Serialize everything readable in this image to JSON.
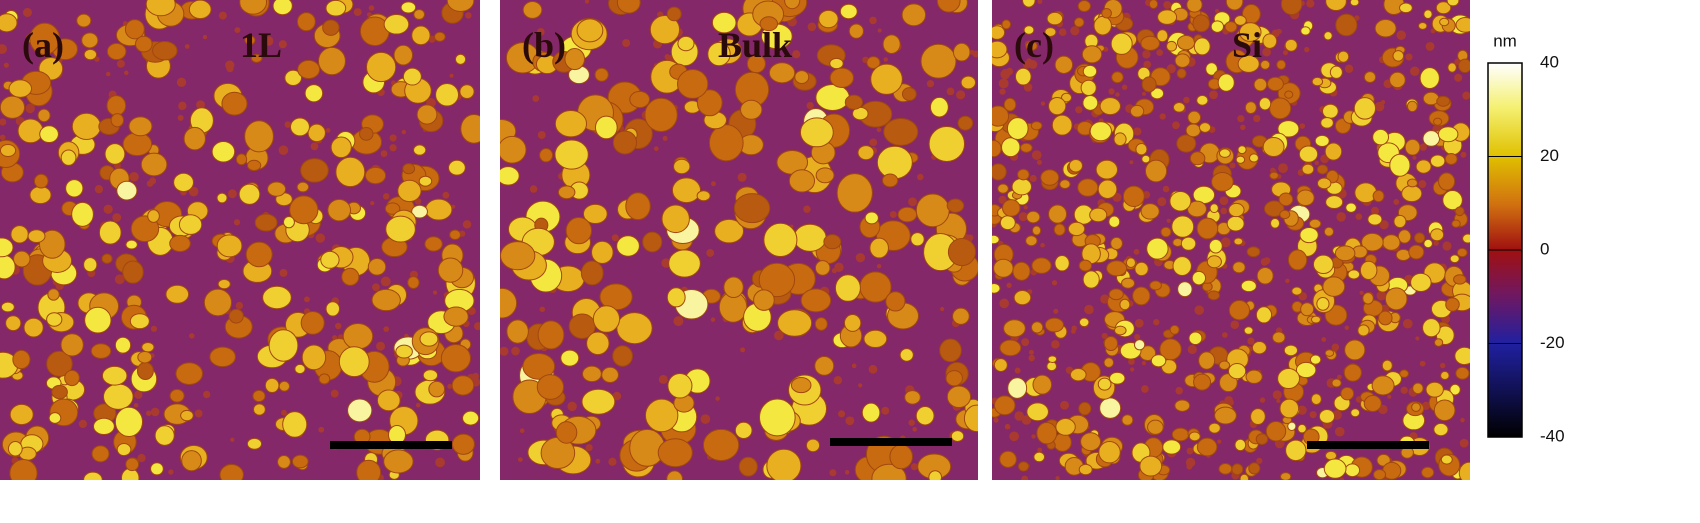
{
  "panels": [
    {
      "label": "(a)",
      "title": "1L"
    },
    {
      "label": "(b)",
      "title": "Bulk"
    },
    {
      "label": "(c)",
      "title": "Si"
    }
  ],
  "colorbar": {
    "unit": "nm",
    "lim": [
      -40,
      40
    ],
    "ticks": [
      40,
      20,
      0,
      -20,
      -40
    ]
  }
}
